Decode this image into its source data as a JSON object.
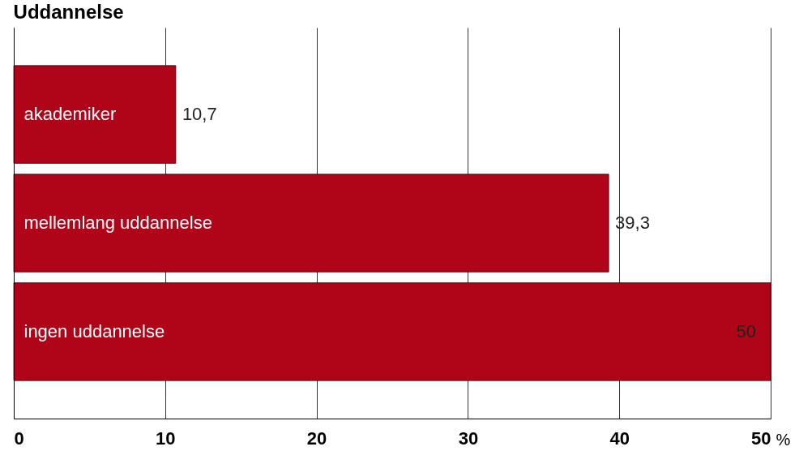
{
  "chart_data": {
    "type": "bar",
    "orientation": "horizontal",
    "title": "Uddannelse",
    "xlabel": "%",
    "categories": [
      "akademiker",
      "mellemlang uddannelse",
      "ingen uddannelse"
    ],
    "values": [
      10.7,
      39.3,
      50
    ],
    "value_labels": [
      "10,7",
      "39,3",
      "50"
    ],
    "color": "#b00418",
    "xlim": [
      0,
      50
    ],
    "xticks": [
      0,
      10,
      20,
      30,
      40,
      50
    ],
    "grid": "x"
  }
}
